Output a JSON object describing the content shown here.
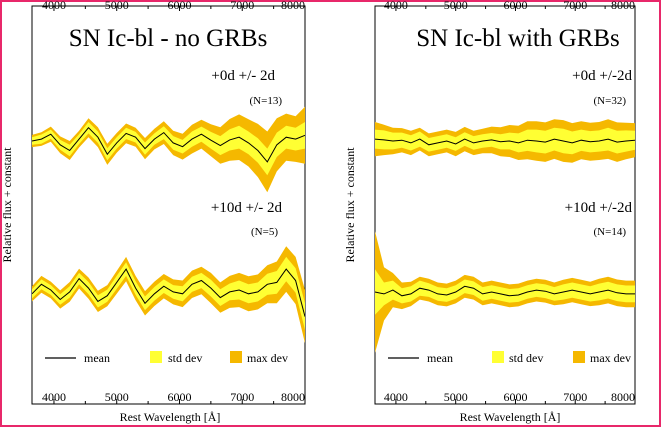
{
  "colors": {
    "frame": "#e8286a",
    "std_dev": "#ffff33",
    "max_dev": "#f5b800",
    "mean": "#000000"
  },
  "chart_data": [
    {
      "type": "line",
      "title": "SN Ic-bl - no GRBs",
      "xlabel": "Rest Wavelength  [Å]",
      "ylabel": "Relative flux + constant",
      "xlim": [
        3650,
        8000
      ],
      "x_ticks": [
        4000,
        5000,
        6000,
        7000,
        8000
      ],
      "x_tick_labels": [
        "4000",
        "5000",
        "6000",
        "7000",
        "8000"
      ],
      "legend": {
        "placement": "bottom",
        "entries": [
          "mean",
          "std dev",
          "max dev"
        ]
      },
      "groups": [
        {
          "label": "+0d +/- 2d",
          "n_label": "(N=13)",
          "x": [
            3650,
            3800,
            3950,
            4100,
            4250,
            4400,
            4550,
            4700,
            4850,
            5000,
            5150,
            5300,
            5450,
            5600,
            5750,
            5900,
            6050,
            6200,
            6350,
            6500,
            6650,
            6800,
            6950,
            7100,
            7250,
            7400,
            7550,
            7700,
            7850,
            8000
          ],
          "mean": [
            0.0,
            0.05,
            0.18,
            -0.1,
            -0.25,
            0.05,
            0.35,
            0.1,
            -0.35,
            -0.05,
            0.2,
            0.1,
            -0.2,
            0.05,
            0.22,
            -0.05,
            -0.15,
            0.05,
            0.18,
            0.02,
            -0.12,
            0.03,
            0.1,
            -0.05,
            -0.25,
            -0.55,
            -0.1,
            0.1,
            0.05,
            0.15
          ],
          "std": [
            0.1,
            0.12,
            0.12,
            0.13,
            0.15,
            0.13,
            0.15,
            0.15,
            0.16,
            0.15,
            0.15,
            0.14,
            0.16,
            0.15,
            0.17,
            0.18,
            0.18,
            0.2,
            0.2,
            0.22,
            0.25,
            0.28,
            0.3,
            0.3,
            0.32,
            0.35,
            0.32,
            0.3,
            0.3,
            0.35
          ],
          "max": [
            0.16,
            0.18,
            0.2,
            0.22,
            0.25,
            0.22,
            0.25,
            0.26,
            0.28,
            0.26,
            0.26,
            0.25,
            0.28,
            0.27,
            0.3,
            0.32,
            0.34,
            0.38,
            0.38,
            0.42,
            0.48,
            0.55,
            0.6,
            0.62,
            0.7,
            0.8,
            0.7,
            0.62,
            0.6,
            0.75
          ]
        },
        {
          "label": "+10d +/- 2d",
          "n_label": "(N=5)",
          "x": [
            3650,
            3800,
            3950,
            4100,
            4250,
            4400,
            4550,
            4700,
            4850,
            5000,
            5150,
            5300,
            5450,
            5600,
            5750,
            5900,
            6050,
            6200,
            6350,
            6500,
            6650,
            6800,
            6950,
            7100,
            7250,
            7400,
            7550,
            7700,
            7850,
            8000
          ],
          "mean": [
            -0.1,
            0.15,
            0.0,
            -0.25,
            -0.05,
            0.3,
            0.05,
            -0.3,
            -0.15,
            0.2,
            0.55,
            0.05,
            -0.35,
            -0.1,
            0.1,
            -0.05,
            -0.1,
            0.15,
            0.25,
            0.05,
            -0.2,
            -0.05,
            0.0,
            -0.1,
            -0.05,
            0.15,
            0.2,
            0.55,
            0.25,
            -0.7
          ],
          "std": [
            0.12,
            0.13,
            0.13,
            0.14,
            0.15,
            0.15,
            0.16,
            0.16,
            0.16,
            0.17,
            0.18,
            0.18,
            0.18,
            0.18,
            0.18,
            0.18,
            0.2,
            0.2,
            0.2,
            0.22,
            0.22,
            0.22,
            0.25,
            0.25,
            0.25,
            0.28,
            0.3,
            0.32,
            0.32,
            0.35
          ],
          "max": [
            0.2,
            0.22,
            0.22,
            0.24,
            0.26,
            0.26,
            0.28,
            0.28,
            0.28,
            0.3,
            0.32,
            0.32,
            0.32,
            0.32,
            0.32,
            0.33,
            0.35,
            0.36,
            0.36,
            0.4,
            0.4,
            0.42,
            0.45,
            0.46,
            0.46,
            0.5,
            0.55,
            0.6,
            0.62,
            0.7
          ]
        }
      ]
    },
    {
      "type": "line",
      "title": "SN Ic-bl with GRBs",
      "xlabel": "Rest Wavelength  [Å]",
      "ylabel": "Relative flux + constant",
      "xlim": [
        3650,
        8000
      ],
      "x_ticks": [
        4000,
        5000,
        6000,
        7000,
        8000
      ],
      "x_tick_labels": [
        "4000",
        "5000",
        "6000",
        "7000",
        "8000"
      ],
      "legend": {
        "placement": "bottom",
        "entries": [
          "mean",
          "std dev",
          "max dev"
        ]
      },
      "groups": [
        {
          "label": "+0d +/-2d",
          "n_label": "(N=32)",
          "x": [
            3650,
            3800,
            3950,
            4100,
            4250,
            4400,
            4550,
            4700,
            4850,
            5000,
            5150,
            5300,
            5450,
            5600,
            5750,
            5900,
            6050,
            6200,
            6350,
            6500,
            6650,
            6800,
            6950,
            7100,
            7250,
            7400,
            7550,
            7700,
            7850,
            8000
          ],
          "mean": [
            0.05,
            0.03,
            0.0,
            0.02,
            -0.05,
            0.05,
            -0.1,
            -0.05,
            0.0,
            -0.08,
            0.05,
            -0.05,
            0.0,
            0.03,
            -0.02,
            0.0,
            -0.05,
            0.02,
            0.0,
            -0.03,
            0.05,
            0.0,
            -0.05,
            0.02,
            -0.02,
            0.0,
            0.05,
            -0.03,
            0.0,
            0.02
          ],
          "std": [
            0.25,
            0.25,
            0.22,
            0.2,
            0.2,
            0.2,
            0.18,
            0.18,
            0.18,
            0.18,
            0.18,
            0.18,
            0.18,
            0.18,
            0.2,
            0.22,
            0.25,
            0.28,
            0.3,
            0.3,
            0.3,
            0.32,
            0.3,
            0.28,
            0.28,
            0.28,
            0.3,
            0.3,
            0.28,
            0.25
          ],
          "max": [
            0.45,
            0.4,
            0.35,
            0.32,
            0.32,
            0.3,
            0.3,
            0.3,
            0.3,
            0.32,
            0.32,
            0.32,
            0.32,
            0.35,
            0.38,
            0.42,
            0.45,
            0.5,
            0.52,
            0.52,
            0.52,
            0.55,
            0.52,
            0.5,
            0.5,
            0.5,
            0.52,
            0.52,
            0.48,
            0.45
          ]
        },
        {
          "label": "+10d +/-2d",
          "n_label": "(N=14)",
          "x": [
            3650,
            3800,
            3950,
            4100,
            4250,
            4400,
            4550,
            4700,
            4850,
            5000,
            5150,
            5300,
            5450,
            5600,
            5750,
            5900,
            6050,
            6200,
            6350,
            6500,
            6650,
            6800,
            6950,
            7100,
            7250,
            7400,
            7550,
            7700,
            7850,
            8000
          ],
          "mean": [
            0.0,
            -0.05,
            0.05,
            -0.1,
            -0.05,
            0.1,
            0.05,
            -0.05,
            -0.08,
            0.0,
            0.15,
            0.1,
            -0.05,
            0.0,
            -0.05,
            -0.1,
            -0.08,
            0.0,
            0.05,
            0.02,
            -0.05,
            0.0,
            0.05,
            0.0,
            -0.05,
            0.0,
            0.05,
            -0.02,
            -0.05,
            -0.05
          ],
          "std": [
            0.6,
            0.3,
            0.25,
            0.2,
            0.2,
            0.2,
            0.18,
            0.18,
            0.18,
            0.18,
            0.18,
            0.18,
            0.18,
            0.18,
            0.18,
            0.18,
            0.18,
            0.18,
            0.18,
            0.18,
            0.18,
            0.2,
            0.2,
            0.2,
            0.2,
            0.22,
            0.22,
            0.22,
            0.22,
            0.22
          ],
          "max": [
            1.6,
            0.7,
            0.45,
            0.35,
            0.32,
            0.3,
            0.3,
            0.3,
            0.3,
            0.3,
            0.3,
            0.3,
            0.3,
            0.3,
            0.3,
            0.3,
            0.3,
            0.3,
            0.3,
            0.3,
            0.3,
            0.32,
            0.32,
            0.32,
            0.32,
            0.35,
            0.35,
            0.35,
            0.35,
            0.35
          ]
        }
      ]
    }
  ]
}
